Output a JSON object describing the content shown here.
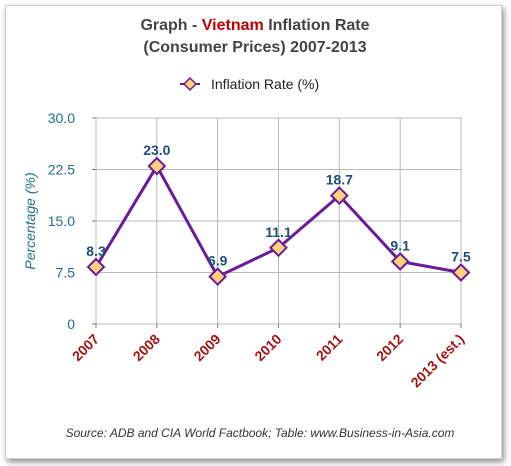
{
  "chart_data": {
    "type": "line",
    "title": {
      "prefix": "Graph - ",
      "highlight": "Vietnam",
      "suffix": " Inflation Rate",
      "line2": "(Consumer Prices) 2007-2013"
    },
    "ylabel": "Percentage (%)",
    "xlabel": "",
    "categories": [
      "2007",
      "2008",
      "2009",
      "2010",
      "2011",
      "2012",
      "2013 (est.)"
    ],
    "yticks": [
      "0",
      "7.5",
      "15.0",
      "22.5",
      "30.0"
    ],
    "ytick_values": [
      0,
      7.5,
      15,
      22.5,
      30
    ],
    "ylim": [
      0,
      30
    ],
    "series": [
      {
        "name": "Inflation Rate (%)",
        "values": [
          8.3,
          23.0,
          6.9,
          11.1,
          18.7,
          9.1,
          7.5
        ],
        "labels": [
          "8.3",
          "23.0",
          "6.9",
          "11.1",
          "18.7",
          "9.1",
          "7.5"
        ]
      }
    ],
    "grid": true,
    "legend_position": "top-center",
    "source": "Source: ADB and CIA World Factbook; Table: www.Business-in-Asia.com",
    "colors": {
      "line": "#6a1b9a",
      "marker_fill": "#ffd27a",
      "marker_stroke": "#6a1b9a",
      "data_label": "#1f4e79",
      "axis_label": "#1f6f8b",
      "category_label": "#a31515",
      "title": "#444444",
      "highlight": "#c00000",
      "grid": "#b8b8b8"
    }
  }
}
